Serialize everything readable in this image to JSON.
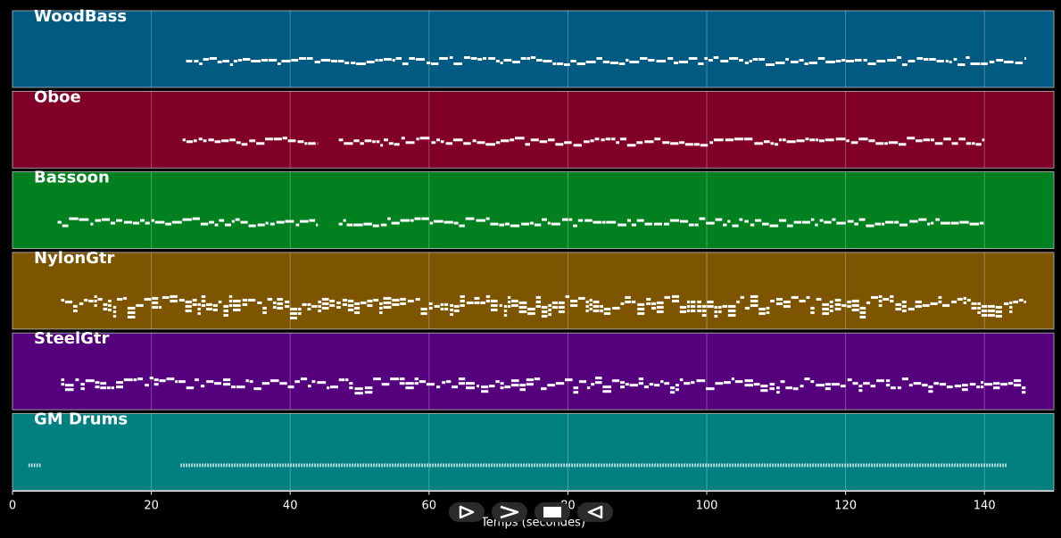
{
  "chart_data": {
    "type": "piano-roll",
    "xlabel": "Temps (secondes)",
    "xlim": [
      0,
      150
    ],
    "xticks": [
      0,
      20,
      40,
      60,
      80,
      100,
      120,
      140
    ],
    "grid": true,
    "tracks": [
      {
        "name": "WoodBass",
        "color": "#005a82",
        "segments": [
          [
            25,
            146
          ]
        ],
        "style": "sparse"
      },
      {
        "name": "Oboe",
        "color": "#800028",
        "segments": [
          [
            24.5,
            44
          ],
          [
            47,
            140
          ]
        ],
        "style": "sparse"
      },
      {
        "name": "Bassoon",
        "color": "#00801e",
        "segments": [
          [
            6.5,
            44
          ],
          [
            47,
            140
          ]
        ],
        "style": "sparse"
      },
      {
        "name": "NylonGtr",
        "color": "#7d5500",
        "segments": [
          [
            7,
            146
          ]
        ],
        "style": "dense"
      },
      {
        "name": "SteelGtr",
        "color": "#55007d",
        "segments": [
          [
            7,
            146
          ]
        ],
        "style": "medium"
      },
      {
        "name": "GM Drums",
        "color": "#008080",
        "segments": [
          [
            2.3,
            4.2
          ],
          [
            24.2,
            143
          ]
        ],
        "style": "drums"
      }
    ]
  },
  "controls": [
    {
      "name": "play-button",
      "icon": "play-outline-icon"
    },
    {
      "name": "forward-button",
      "icon": "chevron-right-icon"
    },
    {
      "name": "stop-button",
      "icon": "stop-icon"
    },
    {
      "name": "rewind-button",
      "icon": "play-reverse-icon"
    }
  ]
}
